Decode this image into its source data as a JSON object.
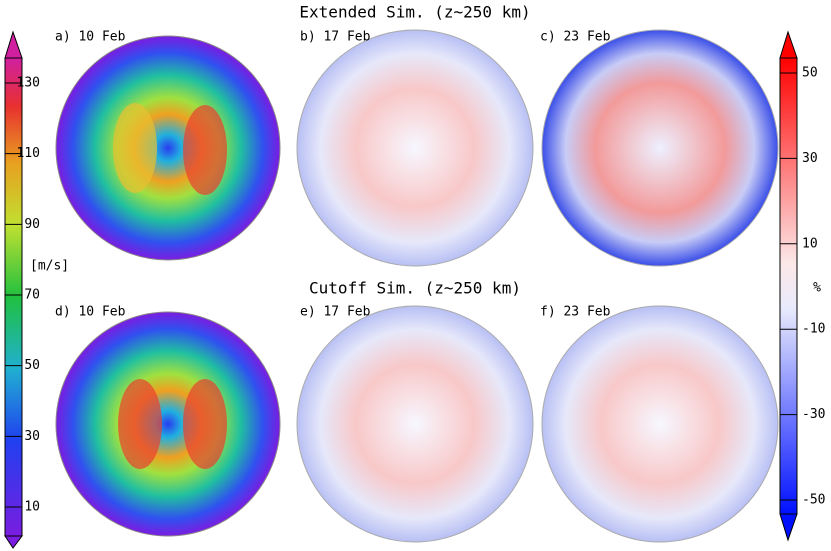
{
  "titles": [
    "Extended Sim. (z~250 km)",
    "Cutoff Sim. (z~250 km)"
  ],
  "panels": [
    {
      "label": "a) 10 Feb"
    },
    {
      "label": "b) 17 Feb"
    },
    {
      "label": "c) 23 Feb"
    },
    {
      "label": "d) 10 Feb"
    },
    {
      "label": "e) 17 Feb"
    },
    {
      "label": "f) 23 Feb"
    }
  ],
  "left_colorbar": {
    "label": "[m/s]",
    "ticks": [
      10,
      30,
      50,
      70,
      90,
      110,
      130
    ]
  },
  "right_colorbar": {
    "label": "%",
    "ticks": [
      -50,
      -30,
      -10,
      10,
      30,
      50
    ]
  }
}
